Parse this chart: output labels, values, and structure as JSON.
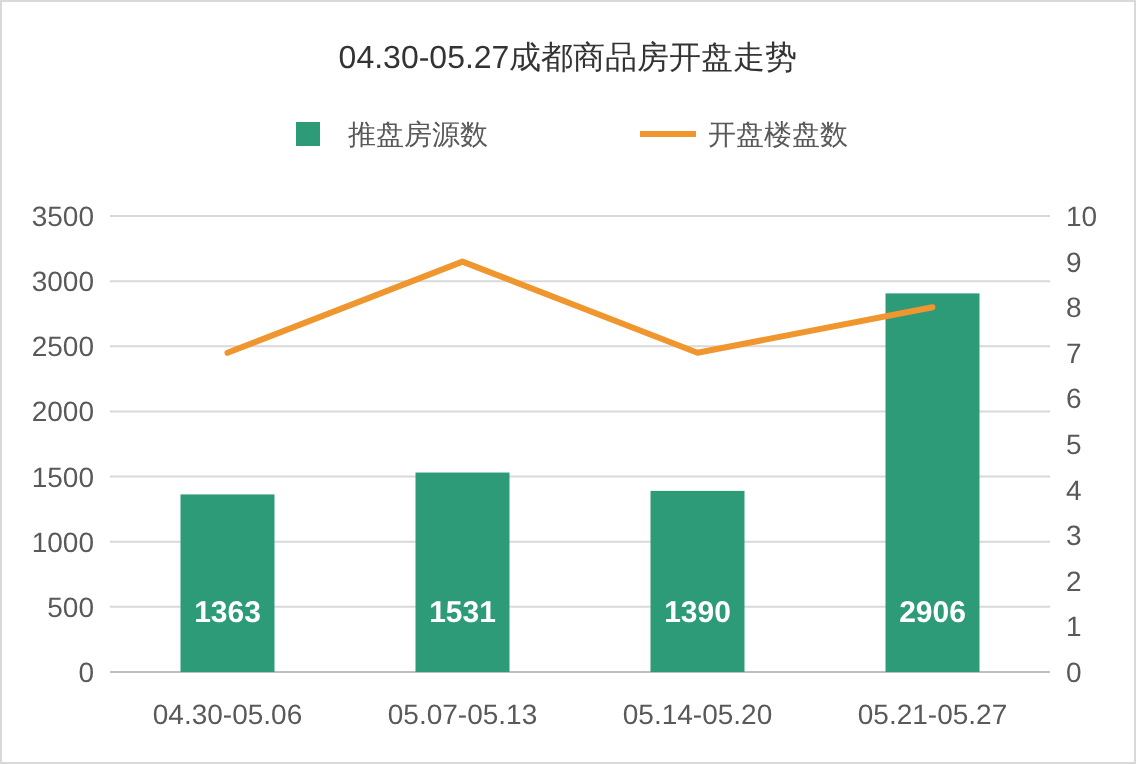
{
  "chart_data": {
    "type": "bar",
    "title": "04.30-05.27成都商品房开盘走势",
    "categories": [
      "04.30-05.06",
      "05.07-05.13",
      "05.14-05.20",
      "05.21-05.27"
    ],
    "series": [
      {
        "name": "推盘房源数",
        "color": "#2e9b78",
        "values": [
          1363,
          1531,
          1390,
          2906
        ],
        "value_labels": [
          "1363",
          "1531",
          "1390",
          "2906"
        ]
      },
      {
        "name": "开盘楼盘数",
        "type": "line",
        "axis": "y2",
        "color": "#f0962e",
        "values": [
          7,
          9,
          7,
          8
        ]
      }
    ],
    "ylim": [
      0,
      3500
    ],
    "yticks": [
      0,
      500,
      1000,
      1500,
      2000,
      2500,
      3000,
      3500
    ],
    "y2lim": [
      0,
      10
    ],
    "y2ticks": [
      0,
      1,
      2,
      3,
      4,
      5,
      6,
      7,
      8,
      9,
      10
    ],
    "grid": "y",
    "legend": "top",
    "marker": "none",
    "line_style": "solid"
  }
}
